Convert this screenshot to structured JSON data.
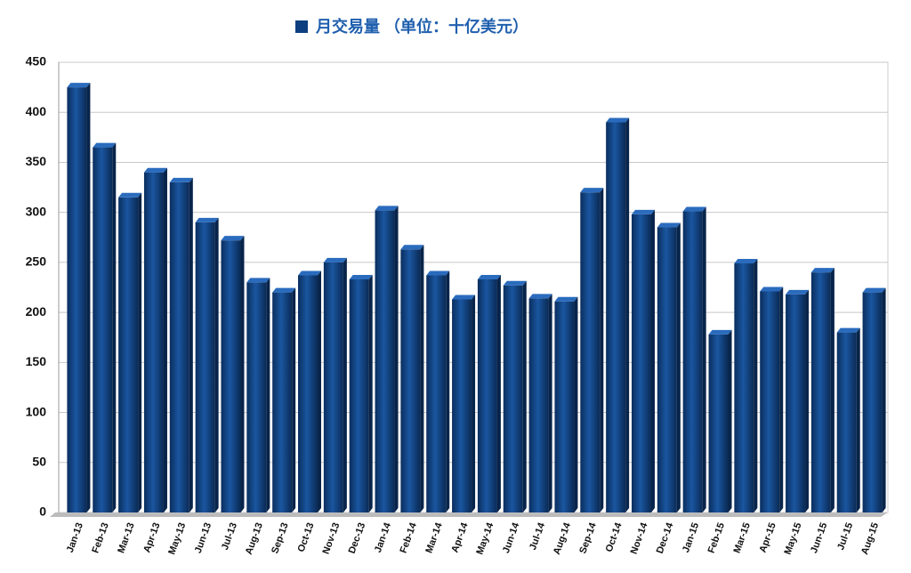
{
  "chart_data": {
    "type": "bar",
    "series": [
      {
        "name": "月交易量 （单位：十亿美元）",
        "color": "#0d3f7f",
        "values": [
          425,
          365,
          315,
          340,
          330,
          290,
          272,
          230,
          220,
          237,
          250,
          233,
          302,
          263,
          237,
          213,
          233,
          227,
          214,
          211,
          320,
          390,
          298,
          285,
          301,
          178,
          249,
          221,
          218,
          240,
          180,
          220
        ]
      }
    ],
    "categories": [
      "Jan-13",
      "Feb-13",
      "Mar-13",
      "Apr-13",
      "May-13",
      "Jun-13",
      "Jul-13",
      "Aug-13",
      "Sep-13",
      "Oct-13",
      "Nov-13",
      "Dec-13",
      "Jan-14",
      "Feb-14",
      "Mar-14",
      "Apr-14",
      "May-14",
      "Jun-14",
      "Jul-14",
      "Aug-14",
      "Sep-14",
      "Oct-14",
      "Nov-14",
      "Dec-14",
      "Jan-15",
      "Feb-15",
      "Mar-15",
      "Apr-15",
      "May-15",
      "Jun-15",
      "Jul-15",
      "Aug-15"
    ],
    "ylim": [
      0,
      450
    ],
    "yticks": [
      0,
      50,
      100,
      150,
      200,
      250,
      300,
      350,
      400,
      450
    ],
    "grid": true,
    "legend": "top"
  }
}
